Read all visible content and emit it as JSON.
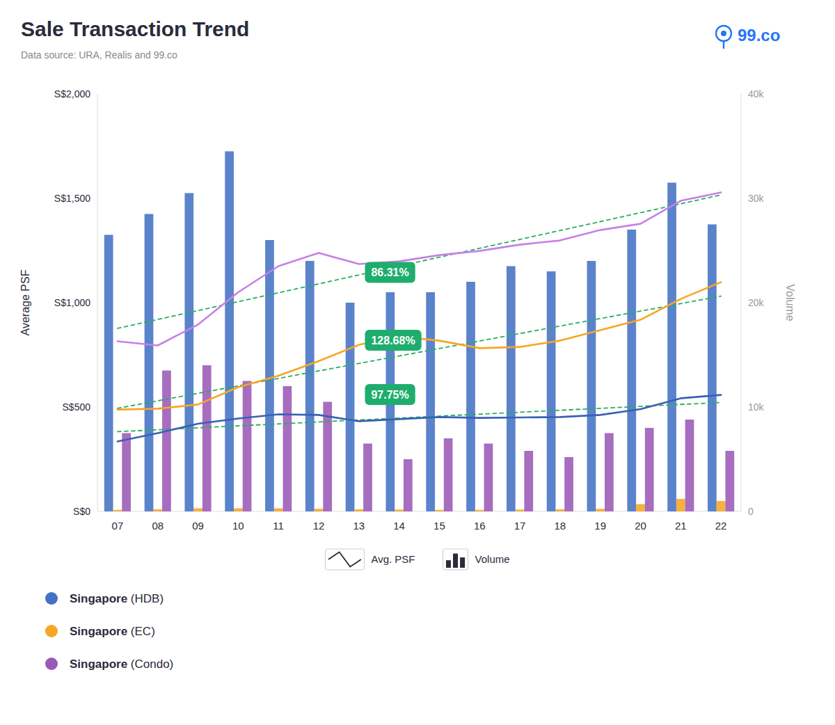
{
  "chart_data": {
    "type": "bar",
    "title": "Sale Transaction Trend",
    "subtitle": "Data source: URA, Realis and 99.co",
    "categories": [
      "07",
      "08",
      "09",
      "10",
      "11",
      "12",
      "13",
      "14",
      "15",
      "16",
      "17",
      "18",
      "19",
      "20",
      "21",
      "22"
    ],
    "ylabel": "Average PSF",
    "y2label": "Volume",
    "ylim": [
      0,
      2000
    ],
    "yticks": [
      {
        "value": 0,
        "label": "S$0"
      },
      {
        "value": 500,
        "label": "S$500"
      },
      {
        "value": 1000,
        "label": "S$1,000"
      },
      {
        "value": 1500,
        "label": "S$1,500"
      },
      {
        "value": 2000,
        "label": "S$2,000"
      }
    ],
    "y2lim": [
      0,
      40000
    ],
    "y2ticks": [
      0,
      {
        "value": 10000,
        "label": "10k"
      },
      {
        "value": 20000,
        "label": "20k"
      },
      {
        "value": 30000,
        "label": "30k"
      },
      {
        "value": 40000,
        "label": "40k"
      }
    ],
    "grid": false,
    "legend": "bottom",
    "series": [
      {
        "name": "Singapore (HDB)",
        "type": "bar",
        "axis": "y2",
        "color": "#4472C4",
        "values": [
          26500,
          28500,
          30500,
          34500,
          26000,
          24000,
          20000,
          21000,
          21000,
          22000,
          23500,
          23000,
          24000,
          27000,
          31500,
          27500
        ]
      },
      {
        "name": "Singapore (EC)",
        "type": "bar",
        "axis": "y2",
        "color": "#F5A623",
        "values": [
          150,
          200,
          300,
          300,
          300,
          250,
          200,
          180,
          150,
          150,
          180,
          200,
          250,
          700,
          1200,
          1000
        ]
      },
      {
        "name": "Singapore (Condo)",
        "type": "bar",
        "axis": "y2",
        "color": "#9B59B6",
        "values": [
          7500,
          13500,
          14000,
          12500,
          12000,
          10500,
          6500,
          5000,
          7000,
          6500,
          5800,
          5200,
          7500,
          8000,
          8800,
          5800
        ]
      },
      {
        "type": "line",
        "color": "#3A5FB5",
        "line_style": "solid",
        "values": [
          335,
          375,
          420,
          445,
          465,
          462,
          432,
          442,
          452,
          448,
          450,
          452,
          462,
          490,
          542,
          558
        ]
      },
      {
        "type": "line",
        "color": "#F5A623",
        "line_style": "solid",
        "values": [
          488,
          492,
          512,
          595,
          650,
          720,
          798,
          838,
          818,
          782,
          788,
          818,
          868,
          918,
          1018,
          1098
        ]
      },
      {
        "type": "line",
        "color": "#C780E8",
        "line_style": "solid",
        "values": [
          815,
          795,
          895,
          1050,
          1175,
          1238,
          1185,
          1198,
          1228,
          1248,
          1278,
          1298,
          1348,
          1378,
          1488,
          1528
        ]
      },
      {
        "type": "line",
        "color": "#27AE60",
        "line_style": "dashed",
        "values": [
          381.88,
          391.21,
          400.55,
          409.88,
          419.21,
          428.54,
          437.88,
          447.21,
          456.54,
          465.87,
          475.21,
          484.54,
          493.87,
          503.2,
          512.54,
          521.87
        ]
      },
      {
        "type": "line",
        "color": "#27AE60",
        "line_style": "dashed",
        "values": [
          493.9,
          529.72,
          565.54,
          601.36,
          637.19,
          673.01,
          708.83,
          744.65,
          780.47,
          816.3,
          852.12,
          887.94,
          923.76,
          959.58,
          995.41,
          1031.23
        ]
      },
      {
        "type": "line",
        "color": "#27AE60",
        "line_style": "dashed",
        "values": [
          876.94,
          919.56,
          962.17,
          1004.79,
          1047.41,
          1090.02,
          1132.64,
          1175.25,
          1217.87,
          1260.49,
          1303.1,
          1345.72,
          1388.34,
          1430.95,
          1473.57,
          1516.18
        ]
      }
    ],
    "annotations": [
      {
        "text": "86.31%",
        "x": "13",
        "y": 1145,
        "color": "#1FAD6E"
      },
      {
        "text": "128.68%",
        "x": "13",
        "y": 820,
        "color": "#1FAD6E"
      },
      {
        "text": "97.75%",
        "x": "13",
        "y": 560,
        "color": "#1FAD6E"
      },
      {
        "text": "Avg. PSF",
        "type": "line"
      },
      {
        "text": "Volume",
        "type": "bar"
      },
      {
        "text": "99.co",
        "color": "#2575FC"
      }
    ]
  }
}
